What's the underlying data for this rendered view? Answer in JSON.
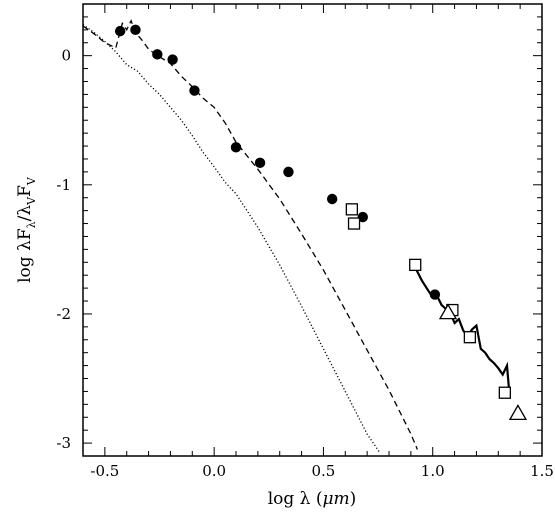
{
  "chart_data": {
    "type": "scatter",
    "xlim": [
      -0.6,
      1.5
    ],
    "ylim": [
      -3.1,
      0.4
    ],
    "x_ticks": [
      -0.5,
      0.0,
      0.5,
      1.0,
      1.5
    ],
    "x_tick_labels": [
      "-0.5",
      "0.0",
      "0.5",
      "1.0",
      "1.5"
    ],
    "y_ticks": [
      0,
      -1,
      -2,
      -3
    ],
    "y_tick_labels": [
      "0",
      "-1",
      "-2",
      "-3"
    ],
    "grid": false,
    "legend": "none",
    "xlabel": {
      "prefix": "log ",
      "lambda": "λ",
      "open": " (",
      "mu": "μ",
      "unit": "m",
      "close": ")"
    },
    "ylabel": {
      "prefix": "log ",
      "l1": "λF",
      "s1": "λ",
      "slash": "/",
      "l2": "λ",
      "s2": "V",
      "f": "F",
      "s3": "V"
    },
    "series": [
      {
        "marker": "filled-circle",
        "x": [
          -0.43,
          -0.36,
          -0.26,
          -0.19,
          -0.09,
          0.1,
          0.21,
          0.34,
          0.54,
          0.68,
          1.01
        ],
        "y": [
          0.19,
          0.2,
          0.01,
          -0.03,
          -0.27,
          -0.71,
          -0.83,
          -0.9,
          -1.11,
          -1.25,
          -1.85
        ]
      },
      {
        "marker": "open-square",
        "x": [
          0.63,
          0.64,
          0.92,
          1.09,
          1.17,
          1.33
        ],
        "y": [
          -1.19,
          -1.3,
          -1.62,
          -1.97,
          -2.18,
          -2.61
        ]
      },
      {
        "marker": "open-triangle",
        "x": [
          1.07,
          1.39
        ],
        "y": [
          -1.99,
          -2.77
        ]
      },
      {
        "line": "solid",
        "x": [
          0.92,
          0.95,
          0.98,
          1.0,
          1.02,
          1.04,
          1.06,
          1.08,
          1.1,
          1.12,
          1.14,
          1.16,
          1.18,
          1.2,
          1.22,
          1.24,
          1.26,
          1.28,
          1.3,
          1.32,
          1.34,
          1.35
        ],
        "y": [
          -1.64,
          -1.74,
          -1.82,
          -1.87,
          -1.86,
          -1.93,
          -1.96,
          -1.99,
          -2.07,
          -2.04,
          -2.13,
          -2.17,
          -2.12,
          -2.09,
          -2.27,
          -2.3,
          -2.35,
          -2.38,
          -2.42,
          -2.47,
          -2.4,
          -2.6
        ]
      },
      {
        "line": "dashed",
        "x": [
          -0.6,
          -0.55,
          -0.5,
          -0.45,
          -0.42,
          -0.4,
          -0.38,
          -0.36,
          -0.33,
          -0.3,
          -0.25,
          -0.2,
          -0.15,
          -0.1,
          -0.05,
          0.0,
          0.05,
          0.1,
          0.2,
          0.3,
          0.4,
          0.5,
          0.6,
          0.7,
          0.8,
          0.9,
          0.93
        ],
        "y": [
          0.23,
          0.17,
          0.1,
          0.06,
          0.25,
          0.2,
          0.27,
          0.18,
          0.12,
          0.05,
          -0.01,
          -0.06,
          -0.16,
          -0.24,
          -0.33,
          -0.4,
          -0.52,
          -0.67,
          -0.88,
          -1.11,
          -1.38,
          -1.66,
          -1.97,
          -2.28,
          -2.59,
          -2.93,
          -3.05
        ]
      },
      {
        "line": "dotted",
        "x": [
          -0.6,
          -0.55,
          -0.5,
          -0.45,
          -0.4,
          -0.35,
          -0.3,
          -0.25,
          -0.2,
          -0.15,
          -0.1,
          -0.05,
          0.0,
          0.05,
          0.1,
          0.2,
          0.3,
          0.4,
          0.5,
          0.6,
          0.7,
          0.76
        ],
        "y": [
          0.24,
          0.18,
          0.11,
          0.03,
          -0.07,
          -0.12,
          -0.22,
          -0.3,
          -0.4,
          -0.5,
          -0.62,
          -0.75,
          -0.86,
          -0.98,
          -1.07,
          -1.33,
          -1.62,
          -1.94,
          -2.27,
          -2.6,
          -2.93,
          -3.08
        ]
      }
    ]
  }
}
